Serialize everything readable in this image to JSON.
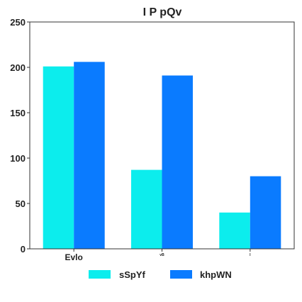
{
  "chart_data": {
    "type": "bar",
    "title": "I P pQv",
    "xlabel": "",
    "ylabel": "",
    "categories": [
      "Evlo",
      "vB",
      "I"
    ],
    "series": [
      {
        "name": "sSpYf",
        "values": [
          201,
          87,
          40
        ],
        "color": "#0ceded"
      },
      {
        "name": "khpWN",
        "values": [
          206,
          191,
          80
        ],
        "color": "#0a7bff"
      }
    ],
    "ylim": [
      0,
      250
    ],
    "yticks": [
      0,
      50,
      100,
      150,
      200,
      250
    ],
    "grid": false,
    "legend": "bottom-center"
  }
}
